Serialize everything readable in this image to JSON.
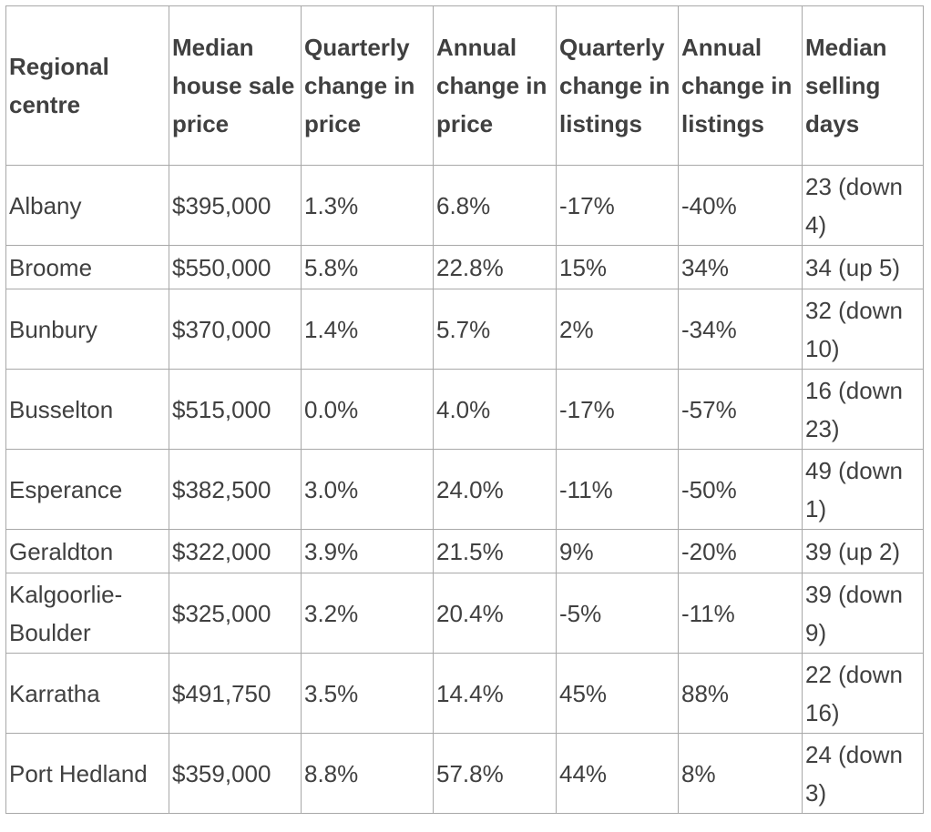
{
  "table": {
    "headers": [
      "Regional centre",
      "Median house sale price",
      "Quarterly change in price",
      "Annual change in price",
      "Quarterly change in listings",
      "Annual change in listings",
      "Median selling days"
    ],
    "rows": [
      [
        "Albany",
        "$395,000",
        "1.3%",
        "6.8%",
        "-17%",
        "-40%",
        "23 (down 4)"
      ],
      [
        "Broome",
        "$550,000",
        "5.8%",
        "22.8%",
        "15%",
        "34%",
        "34 (up 5)"
      ],
      [
        "Bunbury",
        "$370,000",
        "1.4%",
        "5.7%",
        "2%",
        "-34%",
        "32 (down 10)"
      ],
      [
        "Busselton",
        "$515,000",
        "0.0%",
        "4.0%",
        "-17%",
        "-57%",
        "16 (down 23)"
      ],
      [
        "Esperance",
        "$382,500",
        "3.0%",
        "24.0%",
        "-11%",
        "-50%",
        "49 (down 1)"
      ],
      [
        "Geraldton",
        "$322,000",
        "3.9%",
        "21.5%",
        "9%",
        "-20%",
        "39 (up 2)"
      ],
      [
        "Kalgoorlie-Boulder",
        "$325,000",
        "3.2%",
        "20.4%",
        "-5%",
        "-11%",
        "39 (down 9)"
      ],
      [
        "Karratha",
        "$491,750",
        "3.5%",
        "14.4%",
        "45%",
        "88%",
        "22 (down 16)"
      ],
      [
        "Port Hedland",
        "$359,000",
        "8.8%",
        "57.8%",
        "44%",
        "8%",
        "24 (down 3)"
      ]
    ]
  }
}
